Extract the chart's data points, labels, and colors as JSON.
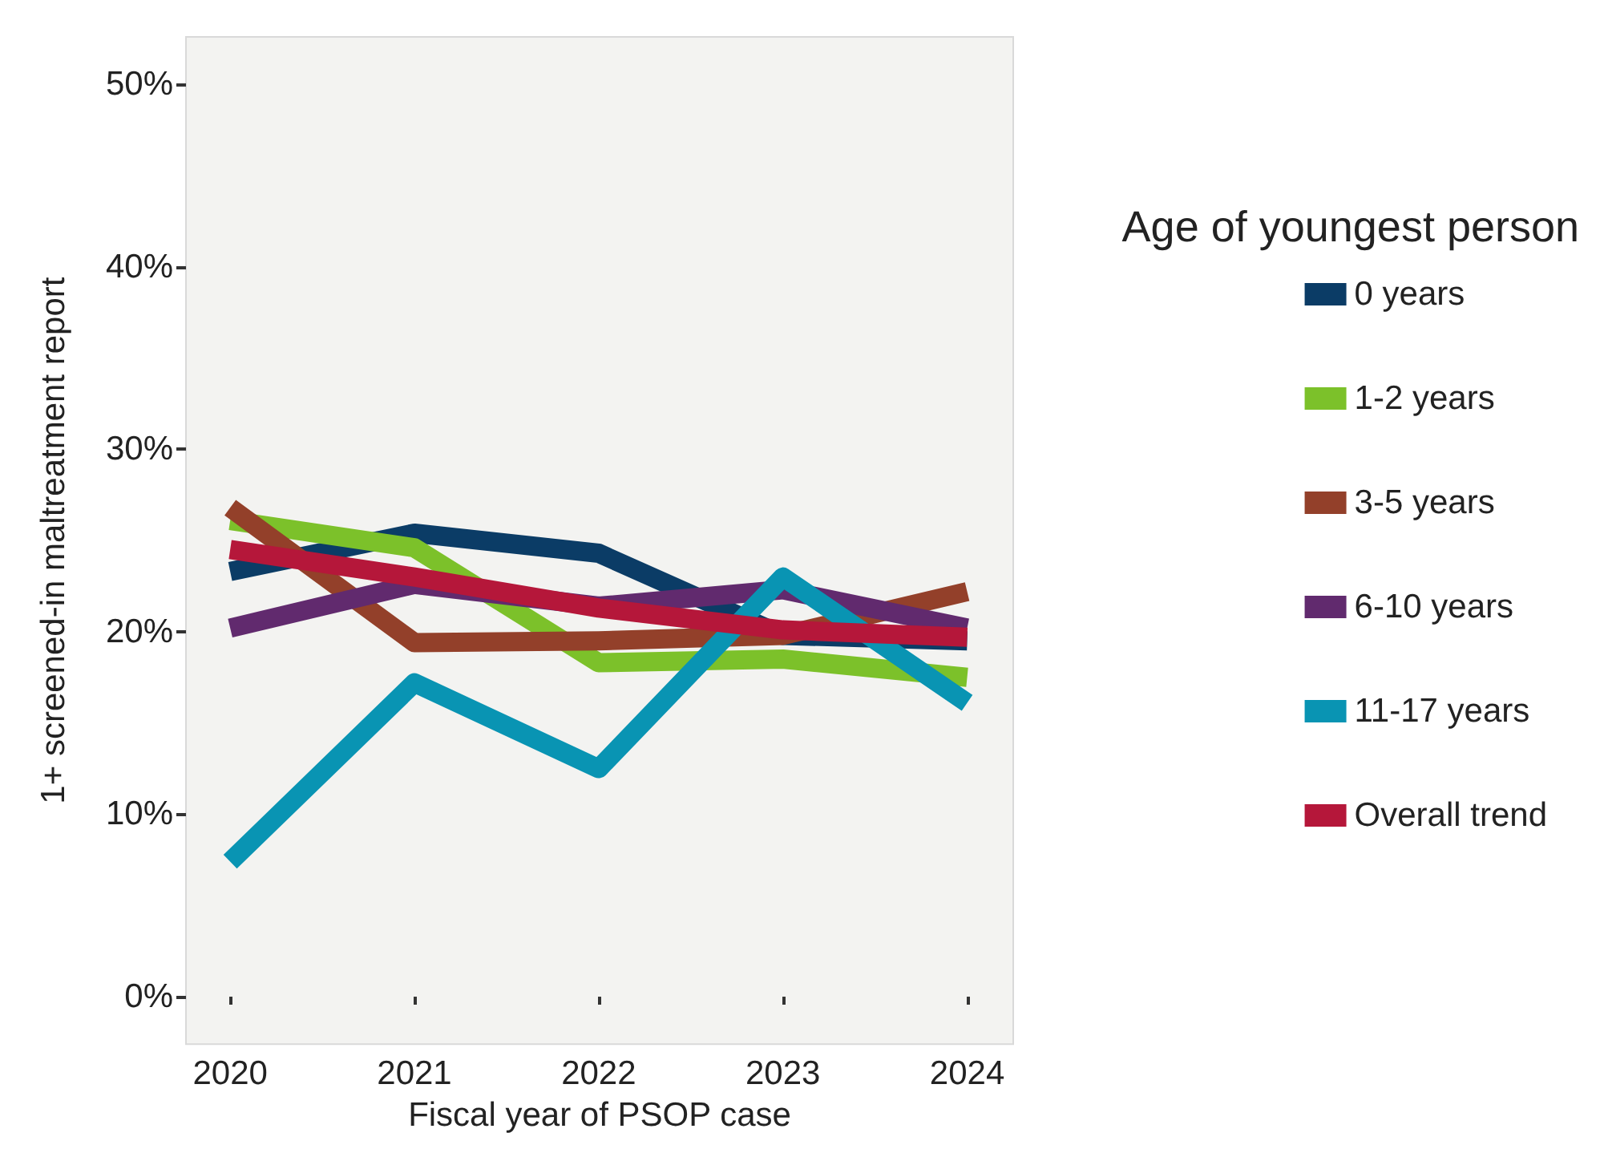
{
  "chart_data": {
    "type": "line",
    "xlabel": "Fiscal year of PSOP case",
    "ylabel": "1+ screened-in maltreatment report",
    "legend_title": "Age of youngest person",
    "x": [
      2020,
      2021,
      2022,
      2023,
      2024
    ],
    "xlim": [
      2019.76,
      2024.25
    ],
    "xticks": [
      2020,
      2021,
      2022,
      2023,
      2024
    ],
    "ylim": [
      -2.6,
      52.6
    ],
    "yticks": [
      {
        "value": 0,
        "label": "0%"
      },
      {
        "value": 10,
        "label": "10%"
      },
      {
        "value": 20,
        "label": "20%"
      },
      {
        "value": 30,
        "label": "30%"
      },
      {
        "value": 40,
        "label": "40%"
      },
      {
        "value": 50,
        "label": "50%"
      }
    ],
    "grid": false,
    "legend": "right",
    "marker": "none",
    "line_style": "solid",
    "series": [
      {
        "name": "0 years",
        "color": "#0b3c66",
        "values": [
          23.3,
          25.4,
          24.3,
          19.8,
          19.5
        ]
      },
      {
        "name": "1-2 years",
        "color": "#7cc12a",
        "values": [
          26.1,
          24.6,
          18.3,
          18.5,
          17.5
        ]
      },
      {
        "name": "3-5 years",
        "color": "#93402a",
        "values": [
          26.8,
          19.4,
          19.5,
          19.8,
          22.2
        ]
      },
      {
        "name": "6-10 years",
        "color": "#612a6e",
        "values": [
          20.2,
          22.6,
          21.4,
          22.3,
          20.2
        ]
      },
      {
        "name": "11-17 years",
        "color": "#0994b3",
        "values": [
          7.4,
          17.2,
          12.5,
          23.0,
          16.1
        ]
      },
      {
        "name": "Overall trend",
        "color": "#b5173a",
        "values": [
          24.5,
          23.0,
          21.3,
          20.1,
          19.7
        ]
      }
    ]
  }
}
